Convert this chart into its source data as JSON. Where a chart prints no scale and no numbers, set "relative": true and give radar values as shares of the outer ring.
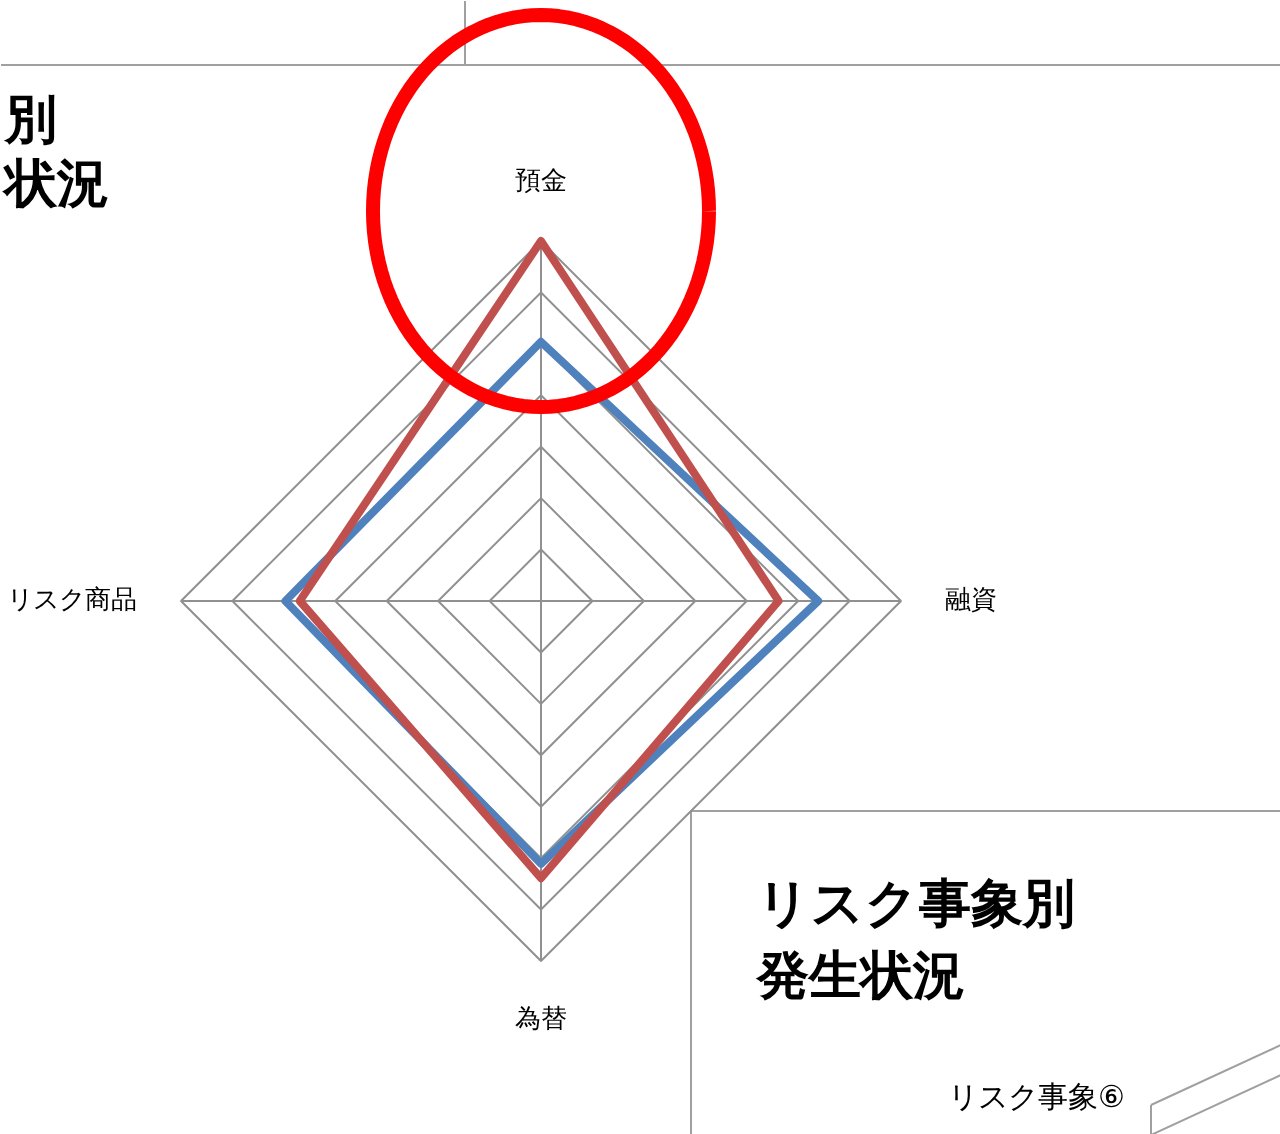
{
  "chart_data": {
    "type": "radar",
    "relative": true,
    "categories": [
      "預金",
      "融資",
      "為替",
      "リスク商品"
    ],
    "series": [
      {
        "color": "#4f81bd",
        "values": [
          0.72,
          0.77,
          0.73,
          0.71
        ]
      },
      {
        "color": "#c0504d",
        "values": [
          1.0,
          0.66,
          0.77,
          0.67
        ]
      }
    ],
    "annotations": [
      "別",
      "状況",
      "リスク事象別",
      "発生状況",
      "リスク事象⑥"
    ]
  }
}
